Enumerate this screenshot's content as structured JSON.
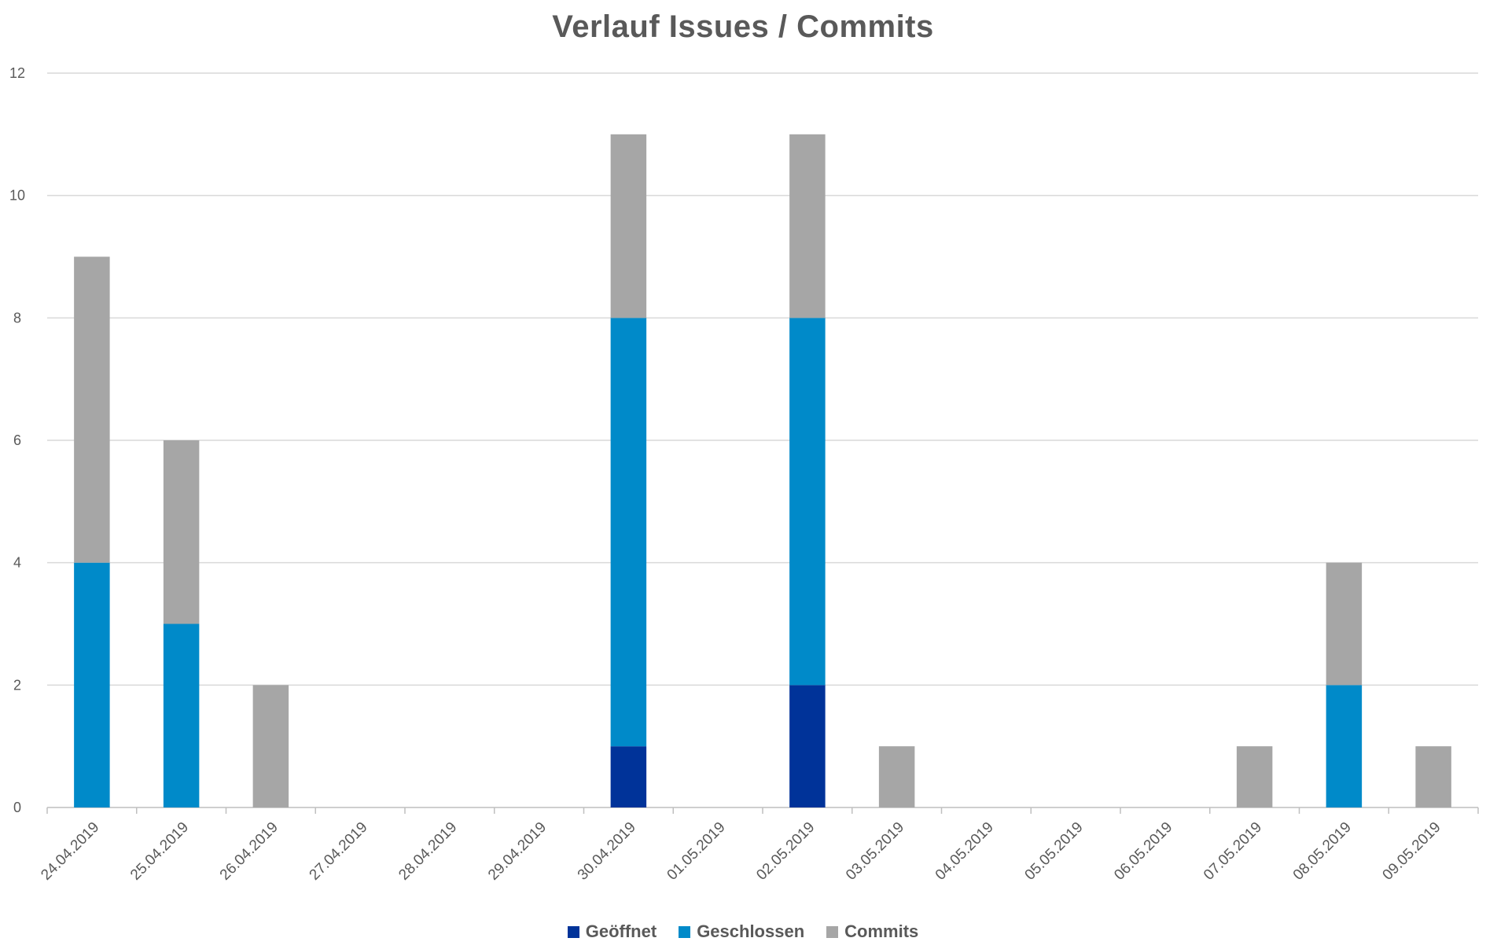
{
  "chart_data": {
    "type": "bar",
    "stacked": true,
    "title": "Verlauf Issues / Commits",
    "xlabel": "",
    "ylabel": "",
    "ylim": [
      0,
      12
    ],
    "yticks": [
      0,
      2,
      4,
      6,
      8,
      10,
      12
    ],
    "grid": true,
    "legend_position": "bottom",
    "categories": [
      "24.04.2019",
      "25.04.2019",
      "26.04.2019",
      "27.04.2019",
      "28.04.2019",
      "29.04.2019",
      "30.04.2019",
      "01.05.2019",
      "02.05.2019",
      "03.05.2019",
      "04.05.2019",
      "05.05.2019",
      "06.05.2019",
      "07.05.2019",
      "08.05.2019",
      "09.05.2019"
    ],
    "series": [
      {
        "name": "Geöffnet",
        "color": "#003399",
        "values": [
          0,
          0,
          0,
          0,
          0,
          0,
          1,
          0,
          2,
          0,
          0,
          0,
          0,
          0,
          0,
          0
        ]
      },
      {
        "name": "Geschlossen",
        "color": "#008ac9",
        "values": [
          4,
          3,
          0,
          0,
          0,
          0,
          7,
          0,
          6,
          0,
          0,
          0,
          0,
          0,
          2,
          0
        ]
      },
      {
        "name": "Commits",
        "color": "#a6a6a6",
        "values": [
          5,
          3,
          2,
          0,
          0,
          0,
          3,
          0,
          3,
          1,
          0,
          0,
          0,
          1,
          2,
          1
        ]
      }
    ]
  }
}
